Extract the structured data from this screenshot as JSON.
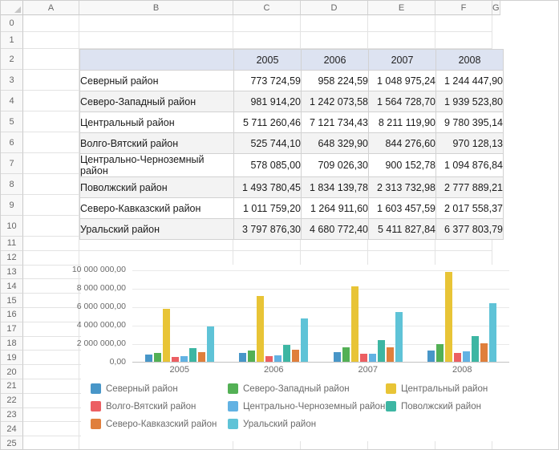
{
  "grid": {
    "column_headers": [
      "A",
      "B",
      "C",
      "D",
      "E",
      "F",
      "G"
    ],
    "row_numbers": [
      "0",
      "1",
      "2",
      "3",
      "4",
      "5",
      "6",
      "7",
      "8",
      "9",
      "10",
      "11",
      "12",
      "13",
      "14",
      "15",
      "16",
      "17",
      "18",
      "19",
      "20",
      "21",
      "22",
      "23",
      "24",
      "25"
    ]
  },
  "table": {
    "year_headers": [
      "2005",
      "2006",
      "2007",
      "2008"
    ],
    "rows": [
      {
        "name": "Северный район",
        "values": [
          "773 724,59",
          "958 224,59",
          "1 048 975,24",
          "1 244 447,90"
        ]
      },
      {
        "name": "Северо-Западный район",
        "values": [
          "981 914,20",
          "1 242 073,58",
          "1 564 728,70",
          "1 939 523,80"
        ]
      },
      {
        "name": "Центральный район",
        "values": [
          "5 711 260,46",
          "7 121 734,43",
          "8 211 119,90",
          "9 780 395,14"
        ]
      },
      {
        "name": "Волго-Вятский район",
        "values": [
          "525 744,10",
          "648 329,90",
          "844 276,60",
          "970 128,13"
        ]
      },
      {
        "name": "Центрально-Черноземный район",
        "values": [
          "578 085,00",
          "709 026,30",
          "900 152,78",
          "1 094 876,84"
        ]
      },
      {
        "name": "Поволжский район",
        "values": [
          "1 493 780,45",
          "1 834 139,78",
          "2 313 732,98",
          "2 777 889,21"
        ]
      },
      {
        "name": "Северо-Кавказский район",
        "values": [
          "1 011 759,20",
          "1 264 911,60",
          "1 603 457,59",
          "2 017 558,37"
        ]
      },
      {
        "name": "Уральский район",
        "values": [
          "3 797 876,30",
          "4 680 772,40",
          "5 411 827,84",
          "6 377 803,79"
        ]
      }
    ]
  },
  "chart_data": {
    "type": "bar",
    "categories": [
      "2005",
      "2006",
      "2007",
      "2008"
    ],
    "series": [
      {
        "name": "Северный район",
        "color": "#4896c8",
        "values": [
          773724.59,
          958224.59,
          1048975.24,
          1244447.9
        ]
      },
      {
        "name": "Северо-Западный район",
        "color": "#53b055",
        "values": [
          981914.2,
          1242073.58,
          1564728.7,
          1939523.8
        ]
      },
      {
        "name": "Центральный район",
        "color": "#e8c436",
        "values": [
          5711260.46,
          7121734.43,
          8211119.9,
          9780395.14
        ]
      },
      {
        "name": "Волго-Вятский район",
        "color": "#ec5f63",
        "values": [
          525744.1,
          648329.9,
          844276.6,
          970128.13
        ]
      },
      {
        "name": "Центрально-Черноземный район",
        "color": "#62b2e3",
        "values": [
          578085.0,
          709026.3,
          900152.78,
          1094876.84
        ]
      },
      {
        "name": "Поволжский район",
        "color": "#3db6a3",
        "values": [
          1493780.45,
          1834139.78,
          2313732.98,
          2777889.21
        ]
      },
      {
        "name": "Северо-Кавказский район",
        "color": "#e07f3c",
        "values": [
          1011759.2,
          1264911.6,
          1603457.59,
          2017558.37
        ]
      },
      {
        "name": "Уральский район",
        "color": "#5fc3d7",
        "values": [
          3797876.3,
          4680772.4,
          5411827.84,
          6377803.79
        ]
      }
    ],
    "y_ticks": [
      "10 000 000,00",
      "8 000 000,00",
      "6 000 000,00",
      "4 000 000,00",
      "2 000 000,00",
      "0,00"
    ],
    "ylim": [
      0,
      10000000
    ],
    "grid": true,
    "legend_position": "bottom",
    "title": "",
    "xlabel": "",
    "ylabel": ""
  }
}
